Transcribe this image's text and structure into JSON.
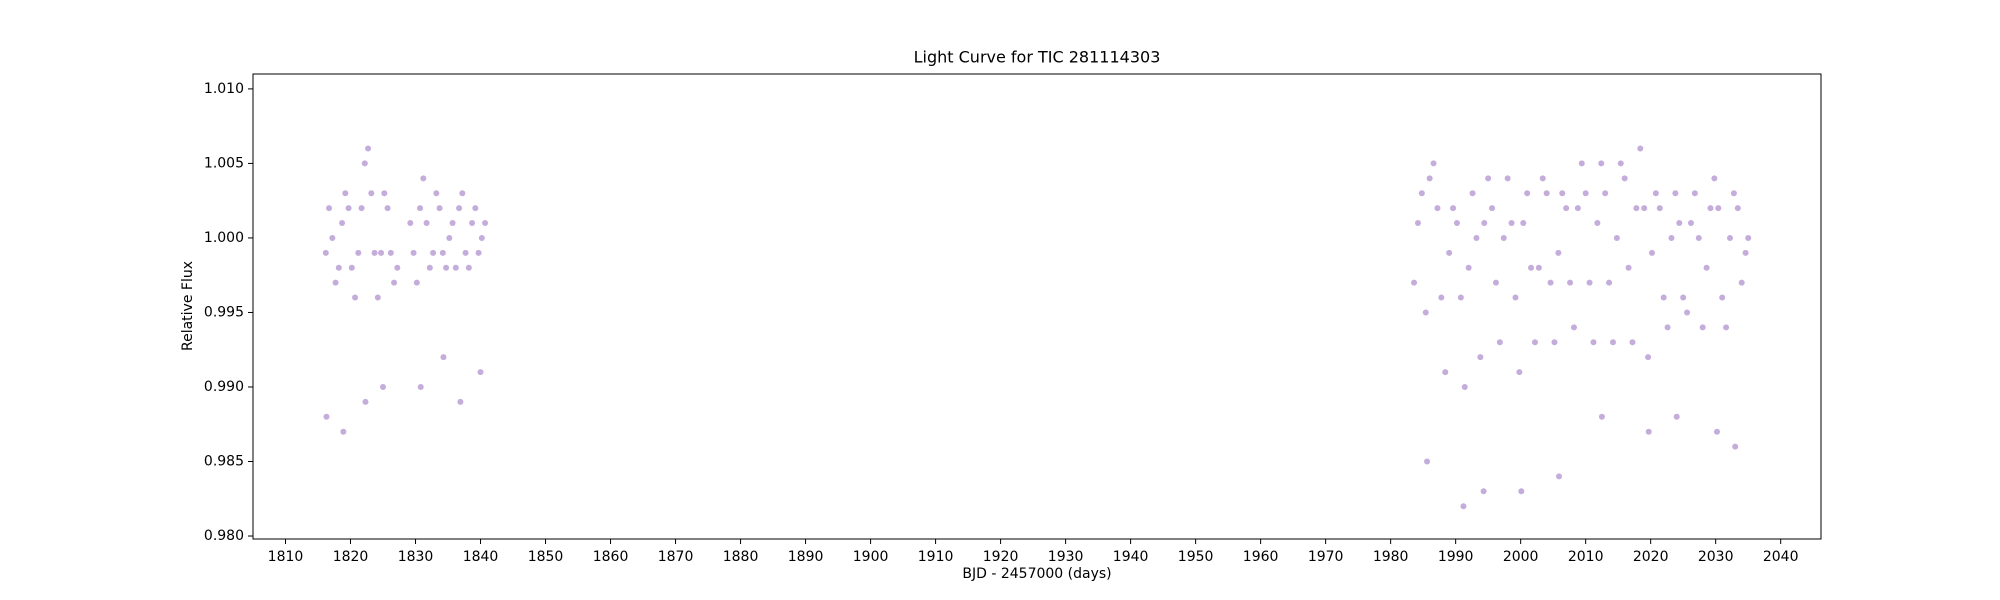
{
  "chart_data": {
    "type": "scatter",
    "title": "Light Curve for TIC 281114303",
    "xlabel": "BJD - 2457000 (days)",
    "ylabel": "Relative Flux",
    "xlim": [
      1805,
      2046.2
    ],
    "ylim": [
      0.9798,
      1.011
    ],
    "xticks": [
      1810,
      1820,
      1830,
      1840,
      1850,
      1860,
      1870,
      1880,
      1890,
      1900,
      1910,
      1920,
      1930,
      1940,
      1950,
      1960,
      1970,
      1980,
      1990,
      2000,
      2010,
      2020,
      2030,
      2040
    ],
    "yticks": [
      {
        "value": 0.98,
        "label": "0.980"
      },
      {
        "value": 0.985,
        "label": "0.985"
      },
      {
        "value": 0.99,
        "label": "0.990"
      },
      {
        "value": 0.995,
        "label": "0.995"
      },
      {
        "value": 1.0,
        "label": "1.000"
      },
      {
        "value": 1.005,
        "label": "1.005"
      },
      {
        "value": 1.01,
        "label": "1.010"
      }
    ],
    "grid": false,
    "series": [
      {
        "name": "flux",
        "color": "#9467bd",
        "x": [
          1816.2,
          1816.7,
          1817.2,
          1817.7,
          1818.2,
          1818.7,
          1819.2,
          1819.7,
          1820.2,
          1820.7,
          1821.2,
          1821.7,
          1822.2,
          1822.7,
          1823.2,
          1823.7,
          1824.2,
          1824.7,
          1825.2,
          1825.7,
          1826.2,
          1826.7,
          1827.2,
          1829.2,
          1829.7,
          1830.2,
          1830.7,
          1831.2,
          1831.7,
          1832.2,
          1832.7,
          1833.2,
          1833.7,
          1834.2,
          1834.7,
          1835.2,
          1835.7,
          1836.2,
          1836.7,
          1837.2,
          1837.7,
          1838.2,
          1838.7,
          1839.2,
          1839.7,
          1840.2,
          1840.7,
          1816.3,
          1818.9,
          1822.3,
          1825.0,
          1830.8,
          1834.3,
          1836.9,
          1840.0,
          1983.6,
          1984.2,
          1984.8,
          1985.4,
          1986.0,
          1986.6,
          1987.2,
          1987.8,
          1988.4,
          1989.0,
          1989.6,
          1990.2,
          1990.8,
          1991.4,
          1992.0,
          1992.6,
          1993.2,
          1993.8,
          1994.4,
          1995.0,
          1995.6,
          1996.2,
          1996.8,
          1997.4,
          1998.0,
          1998.6,
          1999.2,
          1999.8,
          2000.4,
          2001.0,
          2001.6,
          2002.2,
          2002.8,
          2003.4,
          2004.0,
          2004.6,
          2005.2,
          2005.8,
          2006.4,
          2007.0,
          2007.6,
          2008.2,
          2008.8,
          2009.4,
          2010.0,
          2010.6,
          2011.2,
          2011.8,
          2012.4,
          2013.0,
          2013.6,
          2014.2,
          2014.8,
          2015.4,
          2016.0,
          2016.6,
          2017.2,
          2017.8,
          2018.4,
          2019.0,
          2019.6,
          2020.2,
          2020.8,
          2021.4,
          2022.0,
          2022.6,
          2023.2,
          2023.8,
          2024.4,
          2025.0,
          2025.6,
          2026.2,
          2026.8,
          2027.4,
          2028.0,
          2028.6,
          2029.2,
          2029.8,
          2030.4,
          2031.0,
          2031.6,
          2032.2,
          2032.8,
          2033.4,
          2034.0,
          2034.6,
          2035.0,
          1985.6,
          1991.2,
          1994.3,
          2000.1,
          2005.9,
          2012.5,
          2019.7,
          2024.0,
          2030.2,
          2033.0
        ],
        "values": [
          0.999,
          1.002,
          1.0,
          0.997,
          0.998,
          1.001,
          1.003,
          1.002,
          0.998,
          0.996,
          0.999,
          1.002,
          1.005,
          1.006,
          1.003,
          0.999,
          0.996,
          0.999,
          1.003,
          1.002,
          0.999,
          0.997,
          0.998,
          1.001,
          0.999,
          0.997,
          1.002,
          1.004,
          1.001,
          0.998,
          0.999,
          1.003,
          1.002,
          0.999,
          0.998,
          1.0,
          1.001,
          0.998,
          1.002,
          1.003,
          0.999,
          0.998,
          1.001,
          1.002,
          0.999,
          1.0,
          1.001,
          0.988,
          0.987,
          0.989,
          0.99,
          0.99,
          0.992,
          0.989,
          0.991,
          0.997,
          1.001,
          1.003,
          0.995,
          1.004,
          1.005,
          1.002,
          0.996,
          0.991,
          0.999,
          1.002,
          1.001,
          0.996,
          0.99,
          0.998,
          1.003,
          1.0,
          0.992,
          1.001,
          1.004,
          1.002,
          0.997,
          0.993,
          1.0,
          1.004,
          1.001,
          0.996,
          0.991,
          1.001,
          1.003,
          0.998,
          0.993,
          0.998,
          1.004,
          1.003,
          0.997,
          0.993,
          0.999,
          1.003,
          1.002,
          0.997,
          0.994,
          1.002,
          1.005,
          1.003,
          0.997,
          0.993,
          1.001,
          1.005,
          1.003,
          0.997,
          0.993,
          1.0,
          1.005,
          1.004,
          0.998,
          0.993,
          1.002,
          1.006,
          1.002,
          0.992,
          0.999,
          1.003,
          1.002,
          0.996,
          0.994,
          1.0,
          1.003,
          1.001,
          0.996,
          0.995,
          1.001,
          1.003,
          1.0,
          0.994,
          0.998,
          1.002,
          1.004,
          1.002,
          0.996,
          0.994,
          1.0,
          1.003,
          1.002,
          0.997,
          0.999,
          1.0,
          0.985,
          0.982,
          0.983,
          0.983,
          0.984,
          0.988,
          0.987,
          0.988,
          0.987,
          0.986
        ]
      }
    ]
  }
}
